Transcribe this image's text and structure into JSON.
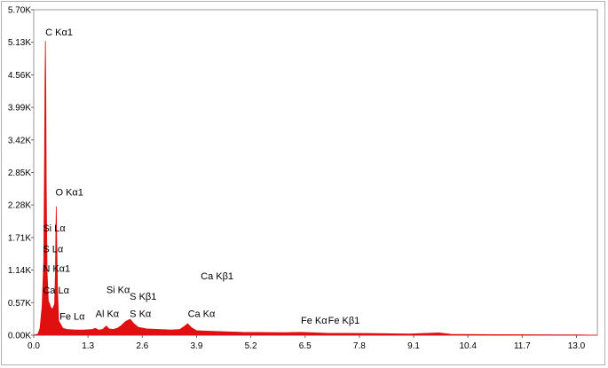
{
  "chart_data": {
    "type": "line",
    "title": "",
    "xlabel": "",
    "ylabel": "",
    "xlim": [
      0.0,
      13.5
    ],
    "ylim": [
      0,
      5.7
    ],
    "x_ticks": [
      "0.0",
      "1.3",
      "2.6",
      "3.9",
      "5.2",
      "6.5",
      "7.8",
      "9.1",
      "10.4",
      "11.7",
      "13.0"
    ],
    "y_ticks": [
      "0.00K",
      "0.57K",
      "1.14K",
      "1.71K",
      "2.28K",
      "2.85K",
      "3.42K",
      "3.99K",
      "4.56K",
      "5.13K",
      "5.70K"
    ],
    "series_color": "#e01010",
    "spectrum": {
      "x": [
        0.0,
        0.1,
        0.15,
        0.2,
        0.24,
        0.26,
        0.27,
        0.28,
        0.29,
        0.3,
        0.32,
        0.35,
        0.38,
        0.4,
        0.45,
        0.5,
        0.52,
        0.53,
        0.54,
        0.55,
        0.57,
        0.6,
        0.7,
        0.8,
        1.0,
        1.2,
        1.4,
        1.48,
        1.55,
        1.65,
        1.74,
        1.8,
        1.9,
        2.0,
        2.1,
        2.2,
        2.31,
        2.4,
        2.5,
        2.7,
        3.0,
        3.3,
        3.5,
        3.6,
        3.69,
        3.78,
        3.9,
        4.2,
        5.0,
        6.0,
        6.4,
        7.0,
        8.0,
        9.0,
        9.7,
        10.0,
        11.0,
        12.0,
        13.0,
        13.5
      ],
      "y": [
        0,
        0.02,
        0.12,
        0.5,
        1.3,
        3.2,
        4.4,
        5.15,
        4.3,
        2.6,
        1.1,
        0.6,
        0.55,
        0.5,
        0.45,
        0.55,
        1.1,
        1.8,
        2.25,
        1.7,
        0.8,
        0.25,
        0.12,
        0.1,
        0.09,
        0.09,
        0.1,
        0.12,
        0.09,
        0.1,
        0.16,
        0.11,
        0.1,
        0.12,
        0.17,
        0.24,
        0.28,
        0.2,
        0.14,
        0.11,
        0.1,
        0.09,
        0.1,
        0.15,
        0.2,
        0.13,
        0.08,
        0.07,
        0.05,
        0.045,
        0.05,
        0.035,
        0.03,
        0.02,
        0.04,
        0.015,
        0.01,
        0.008,
        0.005,
        0
      ]
    },
    "annotations": [
      {
        "text": "C  Kα1",
        "x": 0.28,
        "y": 5.25
      },
      {
        "text": "O  Kα1",
        "x": 0.52,
        "y": 2.45
      },
      {
        "text": "Si Lα",
        "x": 0.22,
        "y": 1.82
      },
      {
        "text": "S  Lα",
        "x": 0.22,
        "y": 1.45
      },
      {
        "text": "N  Kα1",
        "x": 0.22,
        "y": 1.11
      },
      {
        "text": "Ca Lα",
        "x": 0.22,
        "y": 0.73
      },
      {
        "text": "Fe Lα",
        "x": 0.62,
        "y": 0.27
      },
      {
        "text": "Al Kα",
        "x": 1.48,
        "y": 0.32
      },
      {
        "text": "Si Kα",
        "x": 1.74,
        "y": 0.74
      },
      {
        "text": "S  Kβ1",
        "x": 2.3,
        "y": 0.62
      },
      {
        "text": "S  Kα",
        "x": 2.3,
        "y": 0.32
      },
      {
        "text": "Ca Kβ1",
        "x": 4.0,
        "y": 0.98
      },
      {
        "text": "Ca Kα",
        "x": 3.69,
        "y": 0.32
      },
      {
        "text": "Fe Kα",
        "x": 6.4,
        "y": 0.2
      },
      {
        "text": "Fe Kβ1",
        "x": 7.05,
        "y": 0.2
      }
    ]
  }
}
